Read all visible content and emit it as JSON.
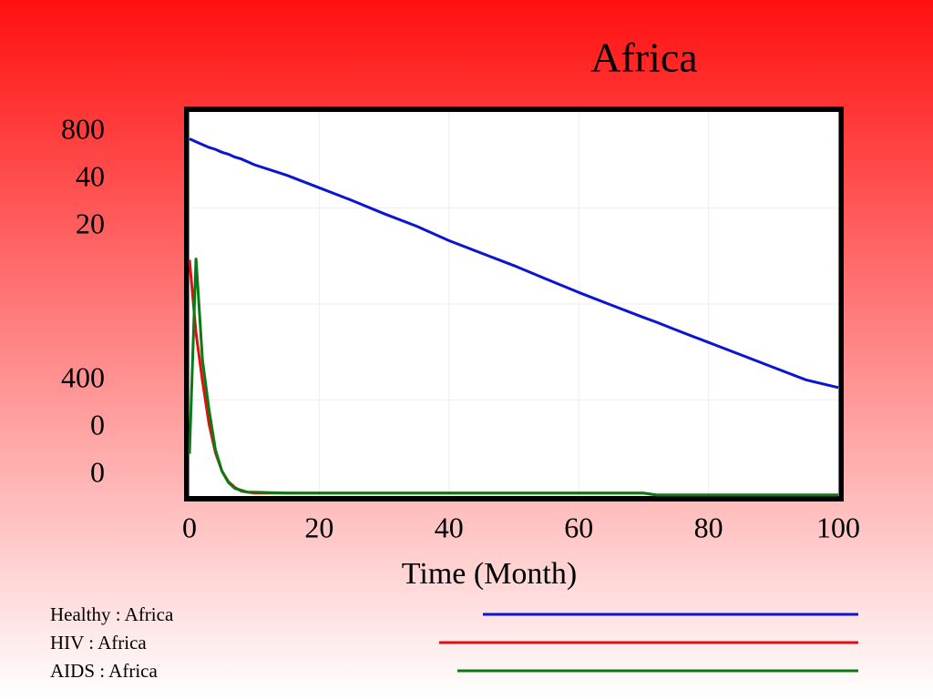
{
  "chart_data": {
    "type": "line",
    "title": "Africa",
    "xlabel": "Time (Month)",
    "x": [
      0,
      1,
      2,
      3,
      4,
      5,
      6,
      7,
      8,
      9,
      10,
      15,
      20,
      25,
      30,
      35,
      40,
      45,
      50,
      55,
      60,
      65,
      70,
      72,
      75,
      80,
      85,
      90,
      95,
      100
    ],
    "xlim": [
      0,
      100
    ],
    "xticks": [
      0,
      20,
      40,
      60,
      80,
      100
    ],
    "grid": true,
    "series": [
      {
        "name": "Healthy : Africa",
        "color": "#0a14d2",
        "ylim": [
          400,
          800
        ],
        "yticks": [
          400,
          800
        ],
        "values": [
          772,
          769,
          766,
          763,
          761,
          758,
          756,
          753,
          751,
          748,
          745,
          734,
          721,
          708,
          694,
          681,
          666,
          653,
          640,
          626,
          612,
          599,
          586,
          581,
          573,
          560,
          547,
          534,
          521,
          513
        ]
      },
      {
        "name": "HIV : Africa",
        "color": "#e01010",
        "ylim": [
          0,
          40
        ],
        "yticks": [
          0,
          40
        ],
        "values": [
          24.6,
          17,
          12,
          7.5,
          4.5,
          2.6,
          1.5,
          0.9,
          0.5,
          0.4,
          0.3,
          0.3,
          0.3,
          0.3,
          0.3,
          0.3,
          0.3,
          0.3,
          0.3,
          0.3,
          0.3,
          0.3,
          0.3,
          0.1,
          0.1,
          0.1,
          0.1,
          0.1,
          0.1,
          0.1
        ]
      },
      {
        "name": "AIDS : Africa",
        "color": "#0a7a14",
        "ylim": [
          0,
          20
        ],
        "yticks": [
          0,
          20
        ],
        "values": [
          2.2,
          12.4,
          7.1,
          4.5,
          2.4,
          1.3,
          0.7,
          0.4,
          0.3,
          0.2,
          0.2,
          0.15,
          0.15,
          0.15,
          0.15,
          0.15,
          0.15,
          0.15,
          0.15,
          0.15,
          0.15,
          0.15,
          0.15,
          0.05,
          0.05,
          0.05,
          0.05,
          0.05,
          0.05,
          0.05
        ]
      }
    ]
  }
}
